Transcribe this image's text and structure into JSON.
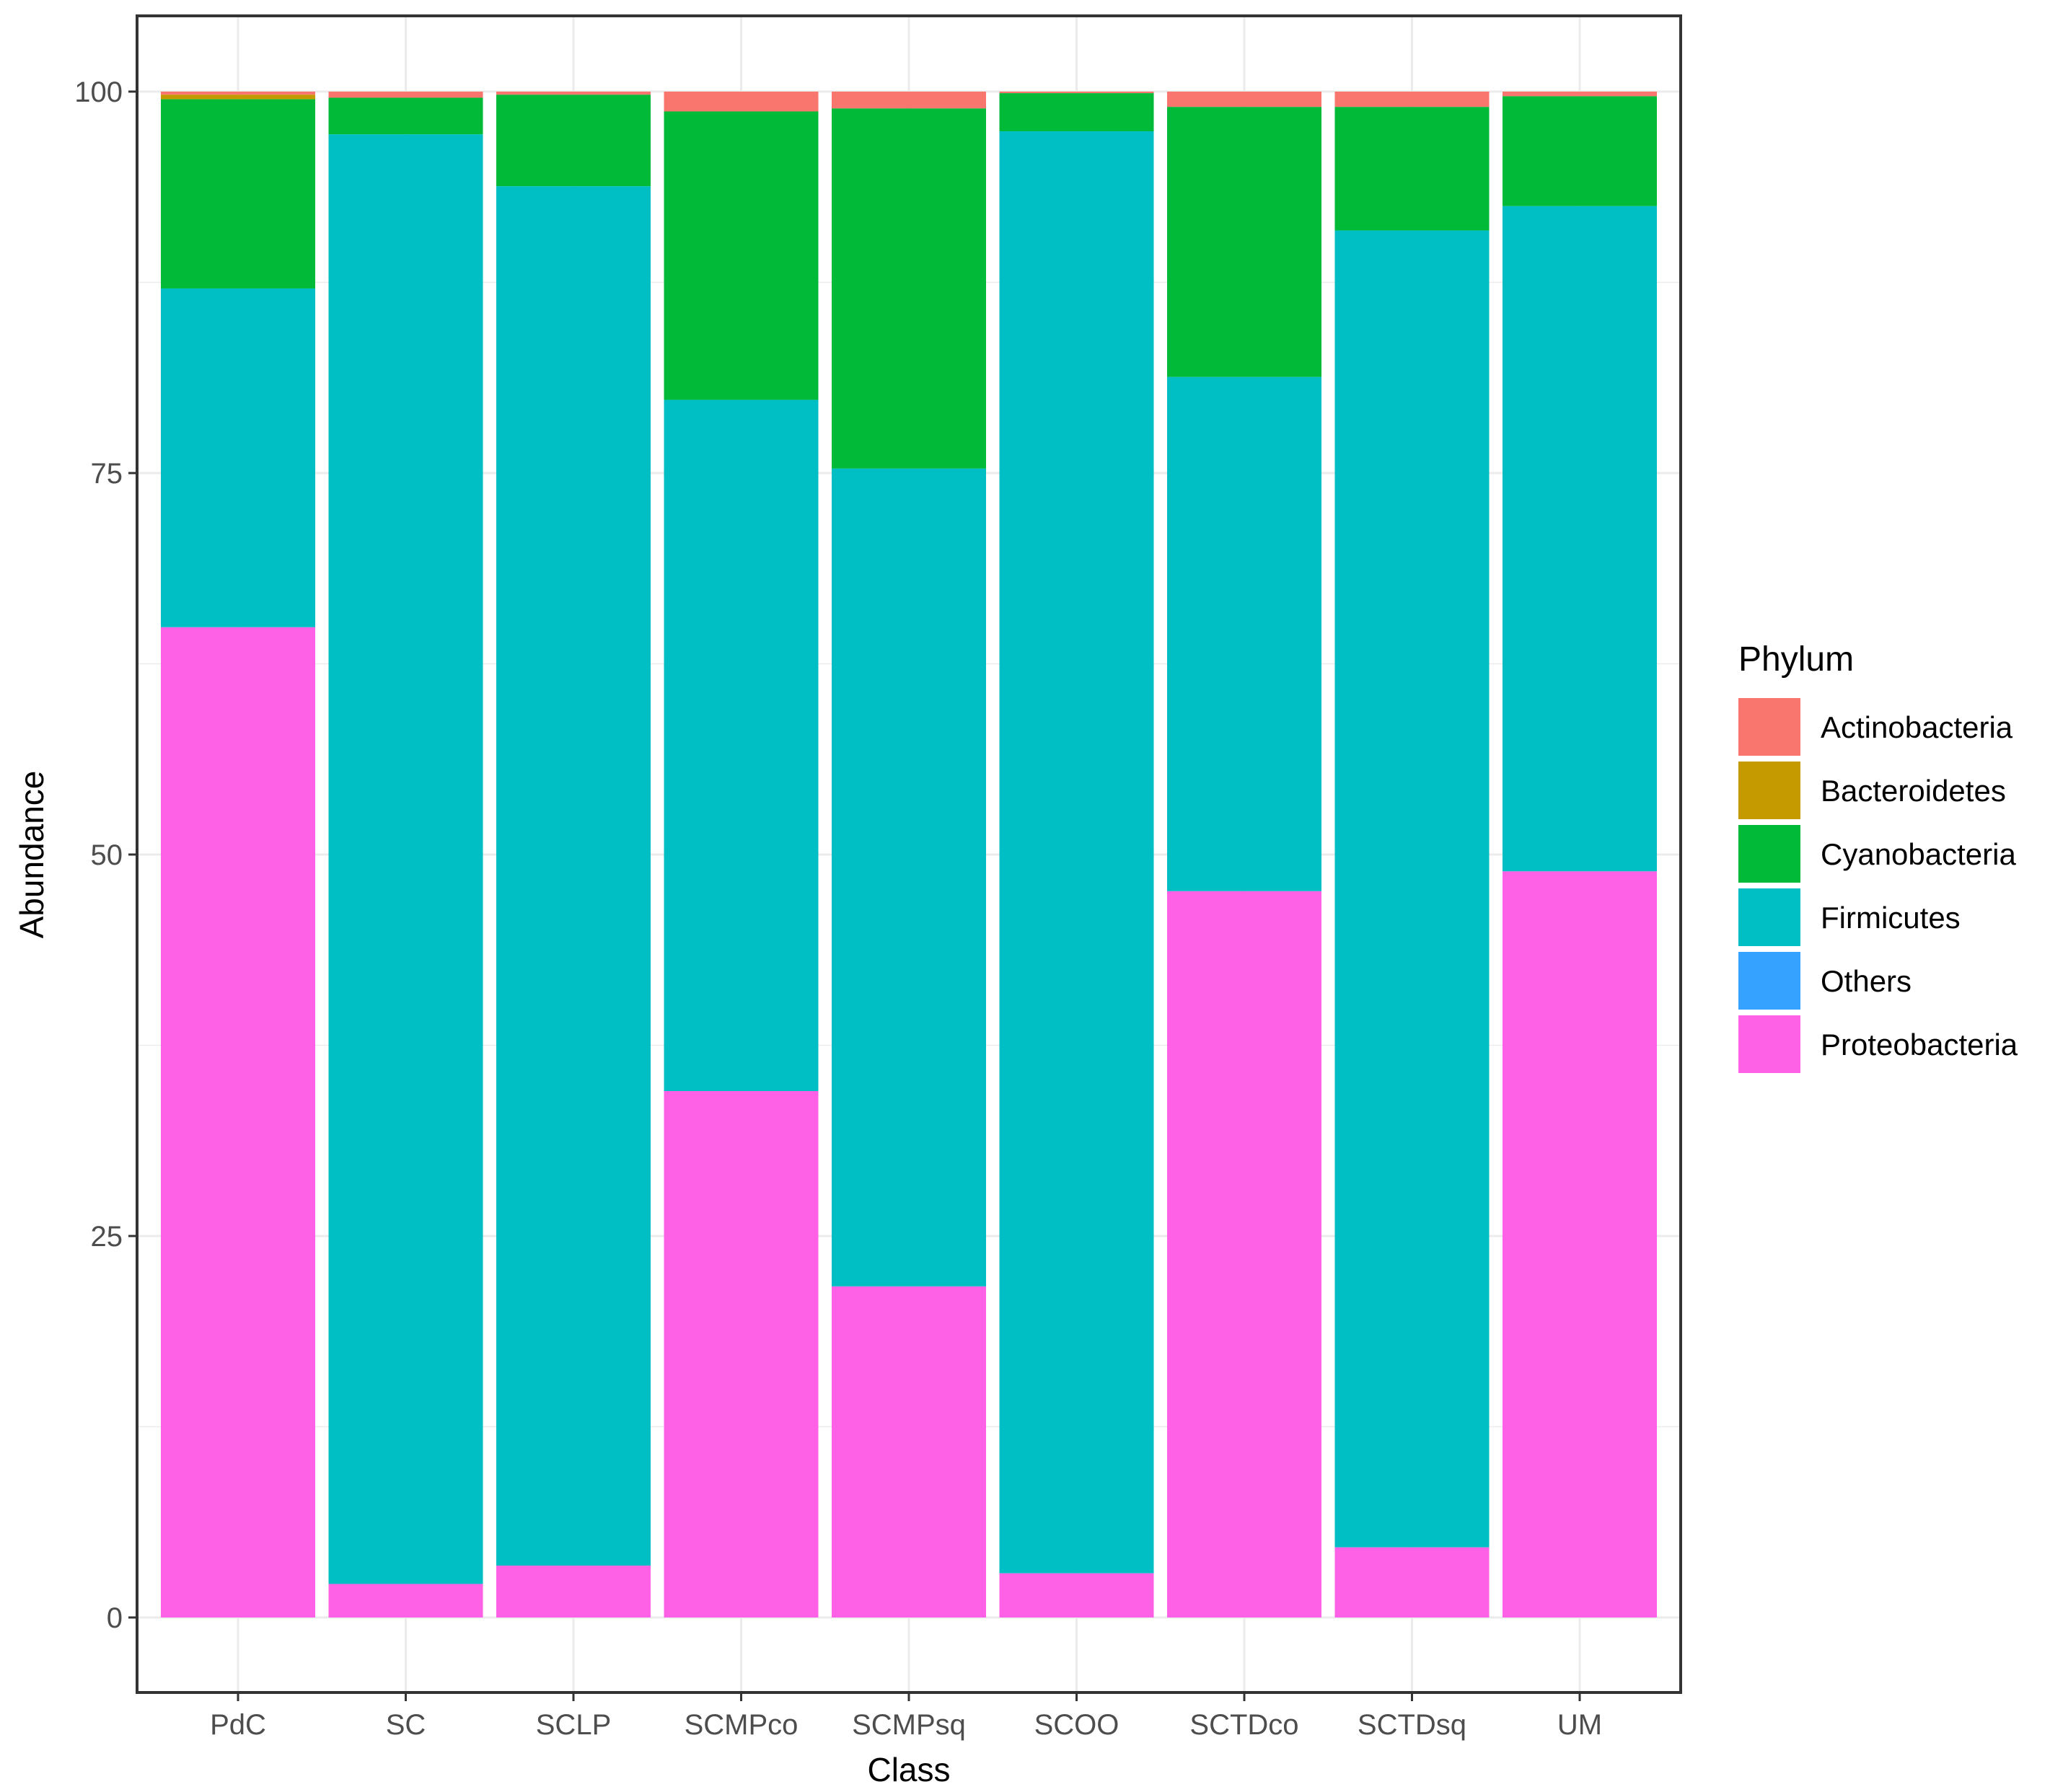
{
  "chart_data": {
    "type": "bar",
    "stacked": true,
    "title": "",
    "xlabel": "Class",
    "ylabel": "Abundance",
    "ylim": [
      -3,
      105
    ],
    "yticks": [
      0,
      25,
      50,
      75,
      100
    ],
    "categories": [
      "PdC",
      "SC",
      "SCLP",
      "SCMPco",
      "SCMPsq",
      "SCOO",
      "SCTDco",
      "SCTDsq",
      "UM"
    ],
    "legend": {
      "title": "Phylum",
      "position": "right",
      "entries": [
        "Actinobacteria",
        "Bacteroidetes",
        "Cyanobacteria",
        "Firmicutes",
        "Others",
        "Proteobacteria"
      ]
    },
    "series": [
      {
        "name": "Proteobacteria",
        "color": "#FF61E6",
        "values": [
          64.9,
          2.2,
          3.4,
          34.5,
          21.7,
          2.9,
          47.6,
          4.6,
          48.9
        ]
      },
      {
        "name": "Firmicutes",
        "color": "#00BFC4",
        "values": [
          22.2,
          95.0,
          90.4,
          45.3,
          53.6,
          94.5,
          33.7,
          86.3,
          43.6
        ]
      },
      {
        "name": "Others",
        "color": "#35A2FF",
        "values": [
          0,
          0,
          0,
          0,
          0,
          0,
          0,
          0,
          0
        ]
      },
      {
        "name": "Cyanobacteria",
        "color": "#00BA38",
        "values": [
          12.4,
          2.4,
          6.0,
          18.9,
          23.6,
          2.5,
          17.7,
          8.1,
          7.2
        ]
      },
      {
        "name": "Bacteroidetes",
        "color": "#C49A00",
        "values": [
          0.3,
          0,
          0,
          0,
          0,
          0,
          0,
          0,
          0
        ]
      },
      {
        "name": "Actinobacteria",
        "color": "#F8766D",
        "values": [
          0.2,
          0.4,
          0.2,
          1.3,
          1.1,
          0.1,
          1.0,
          1.0,
          0.3
        ]
      }
    ],
    "grid": true
  }
}
